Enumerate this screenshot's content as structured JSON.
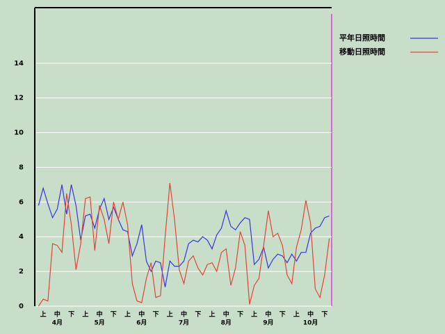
{
  "chart_data": {
    "type": "line",
    "categories": [
      null,
      "上",
      null,
      null,
      "中",
      null,
      null,
      "下",
      null,
      null,
      "上",
      null,
      null,
      "中",
      null,
      null,
      "下",
      null,
      null,
      "上",
      null,
      null,
      "中",
      null,
      null,
      "下",
      null,
      null,
      "上",
      null,
      null,
      "中",
      null,
      null,
      "下",
      null,
      null,
      "上",
      null,
      null,
      "中",
      null,
      null,
      "下",
      null,
      null,
      "上",
      null,
      null,
      "中",
      null,
      null,
      "下",
      null,
      null,
      "上",
      null,
      null,
      "中",
      null,
      null,
      "下",
      null
    ],
    "month_labels": [
      "4月",
      "5月",
      "6月",
      "7月",
      "8月",
      "9月",
      "10月"
    ],
    "series": [
      {
        "name": "平年日照時間",
        "color": "#3535e0",
        "values": [
          5.8,
          6.8,
          5.9,
          5.1,
          5.6,
          7.0,
          5.3,
          7.0,
          5.8,
          3.8,
          5.2,
          5.3,
          4.5,
          5.6,
          6.2,
          5.0,
          5.7,
          5.0,
          4.4,
          4.3,
          2.9,
          3.6,
          4.7,
          2.6,
          2.0,
          2.6,
          2.5,
          1.1,
          2.6,
          2.3,
          2.3,
          2.6,
          3.6,
          3.8,
          3.7,
          4.0,
          3.8,
          3.3,
          4.1,
          4.5,
          5.5,
          4.6,
          4.4,
          4.8,
          5.1,
          5.0,
          2.4,
          2.7,
          3.4,
          2.2,
          2.7,
          3.0,
          2.9,
          2.5,
          3.0,
          2.6,
          3.1,
          3.1,
          4.2,
          4.5,
          4.6,
          5.1,
          5.2
        ]
      },
      {
        "name": "移動日照時間",
        "color": "#e04535",
        "values": [
          0.0,
          0.4,
          0.3,
          3.6,
          3.5,
          3.1,
          6.5,
          4.7,
          2.1,
          3.6,
          6.2,
          6.3,
          3.2,
          5.8,
          5.0,
          3.6,
          6.0,
          5.0,
          6.0,
          4.7,
          1.3,
          0.3,
          0.2,
          1.6,
          2.5,
          0.5,
          0.6,
          4.0,
          7.1,
          5.0,
          2.1,
          1.3,
          2.6,
          2.9,
          2.2,
          1.8,
          2.4,
          2.5,
          2.0,
          3.1,
          3.3,
          1.2,
          2.2,
          4.3,
          3.5,
          0.1,
          1.2,
          1.6,
          3.5,
          5.5,
          4.0,
          4.2,
          3.5,
          1.8,
          1.3,
          3.4,
          4.4,
          6.1,
          4.8,
          1.0,
          0.5,
          1.8,
          3.9
        ]
      }
    ],
    "ylim": [
      0,
      17.2
    ],
    "yticks": [
      0,
      2,
      4,
      6,
      8,
      10,
      12,
      14
    ],
    "grid": true
  }
}
